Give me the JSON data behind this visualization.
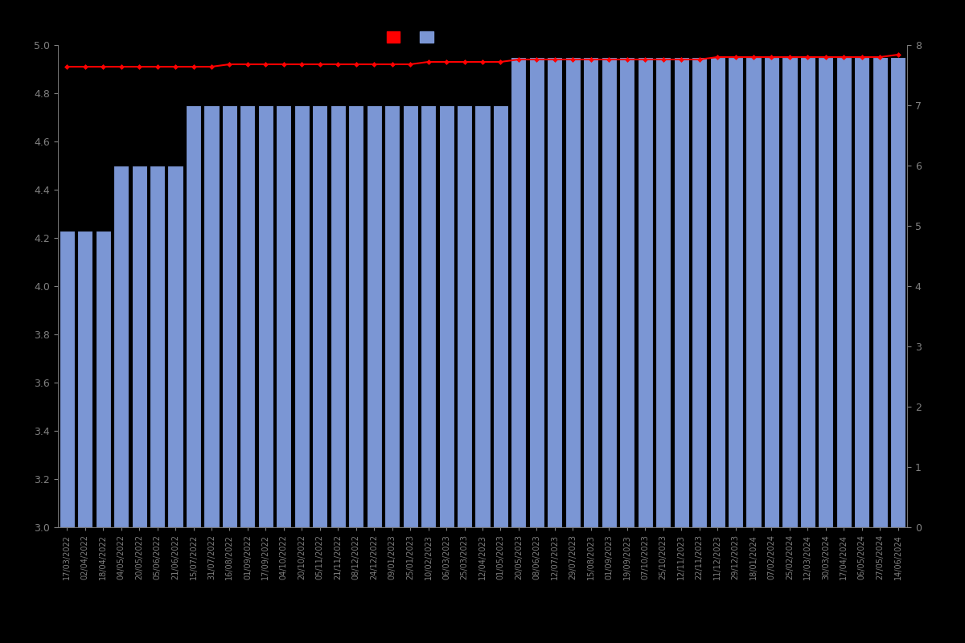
{
  "dates": [
    "17/03/2022",
    "02/04/2022",
    "18/04/2022",
    "04/05/2022",
    "20/05/2022",
    "05/06/2022",
    "21/06/2022",
    "15/07/2022",
    "31/07/2022",
    "16/08/2022",
    "01/09/2022",
    "17/09/2022",
    "04/10/2022",
    "20/10/2022",
    "05/11/2022",
    "21/11/2022",
    "08/12/2022",
    "24/12/2022",
    "09/01/2023",
    "25/01/2023",
    "10/02/2023",
    "06/03/2023",
    "25/03/2023",
    "12/04/2023",
    "01/05/2023",
    "20/05/2023",
    "08/06/2023",
    "12/07/2023",
    "29/07/2023",
    "15/08/2023",
    "01/09/2023",
    "19/09/2023",
    "07/10/2023",
    "25/10/2023",
    "12/11/2023",
    "22/11/2023",
    "11/12/2023",
    "29/12/2023",
    "18/01/2024",
    "07/02/2024",
    "25/02/2024",
    "12/03/2024",
    "30/03/2024",
    "17/04/2024",
    "06/05/2024",
    "27/05/2024",
    "14/06/2024"
  ],
  "bar_values": [
    4.23,
    4.23,
    4.23,
    4.5,
    4.5,
    4.5,
    4.5,
    4.75,
    4.75,
    4.75,
    4.75,
    4.75,
    4.75,
    4.75,
    4.75,
    4.75,
    4.75,
    4.75,
    4.75,
    4.75,
    4.75,
    4.75,
    4.75,
    4.75,
    4.75,
    4.95,
    4.95,
    4.95,
    4.95,
    4.95,
    4.95,
    4.95,
    4.95,
    4.95,
    4.95,
    4.95,
    4.95,
    4.95,
    4.95,
    4.95,
    4.95,
    4.95,
    4.95,
    4.95,
    4.95,
    4.95,
    4.95
  ],
  "line_values": [
    4.91,
    4.91,
    4.91,
    4.91,
    4.91,
    4.91,
    4.91,
    4.91,
    4.91,
    4.92,
    4.92,
    4.92,
    4.92,
    4.92,
    4.92,
    4.92,
    4.92,
    4.92,
    4.92,
    4.92,
    4.93,
    4.93,
    4.93,
    4.93,
    4.93,
    4.94,
    4.94,
    4.94,
    4.94,
    4.94,
    4.94,
    4.94,
    4.94,
    4.94,
    4.94,
    4.94,
    4.95,
    4.95,
    4.95,
    4.95,
    4.95,
    4.95,
    4.95,
    4.95,
    4.95,
    4.95,
    4.96
  ],
  "background_color": "#000000",
  "bar_color": "#7b96d4",
  "bar_edge_color": "#000000",
  "line_color": "#ff0000",
  "line_marker": "D",
  "line_marker_color": "#ff0000",
  "line_marker_size": 3,
  "ylim_left": [
    3.0,
    5.0
  ],
  "ylim_right": [
    0,
    8
  ],
  "yticks_left": [
    3.0,
    3.2,
    3.4,
    3.6,
    3.8,
    4.0,
    4.2,
    4.4,
    4.6,
    4.8,
    5.0
  ],
  "yticks_right": [
    0,
    1,
    2,
    3,
    4,
    5,
    6,
    7,
    8
  ],
  "label_color": "#808080",
  "tick_color": "#808080",
  "legend_patch1_color": "#ff0000",
  "legend_patch2_color": "#7b96d4",
  "figsize": [
    12.0,
    8.0
  ]
}
